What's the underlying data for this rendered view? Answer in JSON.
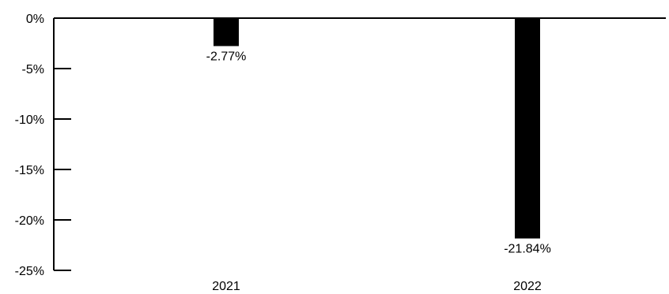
{
  "chart_data": {
    "type": "bar",
    "categories": [
      "2021",
      "2022"
    ],
    "values": [
      -2.77,
      -21.84
    ],
    "value_labels": [
      "-2.77%",
      "-21.84%"
    ],
    "ylim": [
      -25,
      0
    ],
    "yticks": [
      0,
      -5,
      -10,
      -15,
      -20,
      -25
    ],
    "ytick_labels": [
      "0%",
      "-5%",
      "-10%",
      "-15%",
      "-20%",
      "-25%"
    ],
    "title": "",
    "xlabel": "",
    "ylabel": "",
    "grid": false,
    "bar_color": "#000000"
  }
}
